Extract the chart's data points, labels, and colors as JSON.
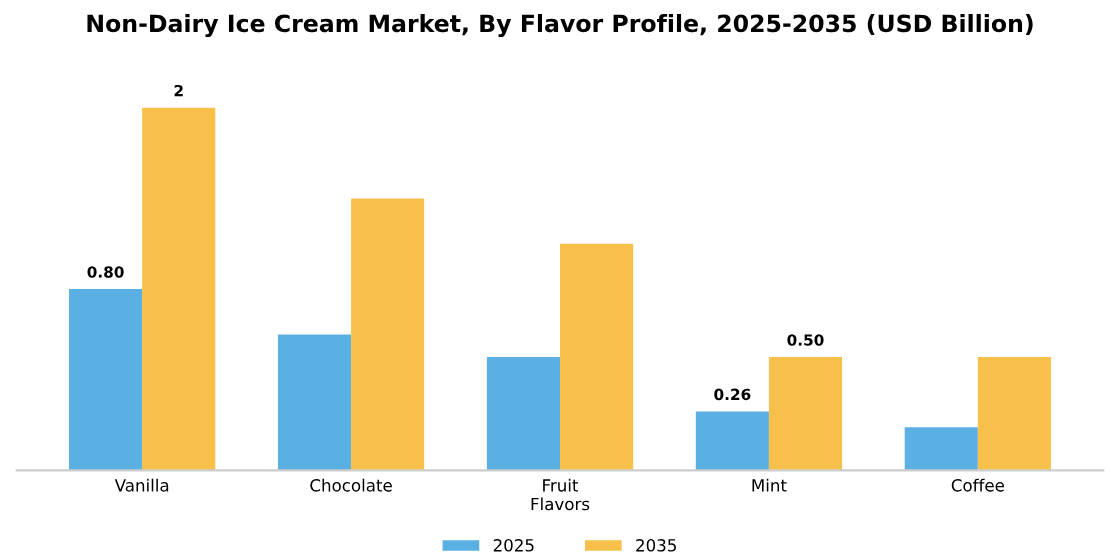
{
  "chart_data": {
    "type": "bar",
    "title": "Non-Dairy Ice Cream Market, By Flavor Profile, 2025-2035 (USD Billion)",
    "categories": [
      "Vanilla",
      "Chocolate",
      "Fruit\nFlavors",
      "Mint",
      "Coffee"
    ],
    "series": [
      {
        "name": "2025",
        "color": "#5ab0e3",
        "values": [
          0.8,
          0.6,
          0.5,
          0.26,
          0.19
        ],
        "value_labels": [
          "0.80",
          null,
          null,
          "0.26",
          null
        ]
      },
      {
        "name": "2035",
        "color": "#f7c04a",
        "values": [
          1.6,
          1.2,
          1.0,
          0.5,
          0.5
        ],
        "value_labels": [
          "2",
          null,
          null,
          "0.50",
          null
        ]
      }
    ],
    "tick_labels": "x",
    "grid": false,
    "legend": "bottom"
  }
}
